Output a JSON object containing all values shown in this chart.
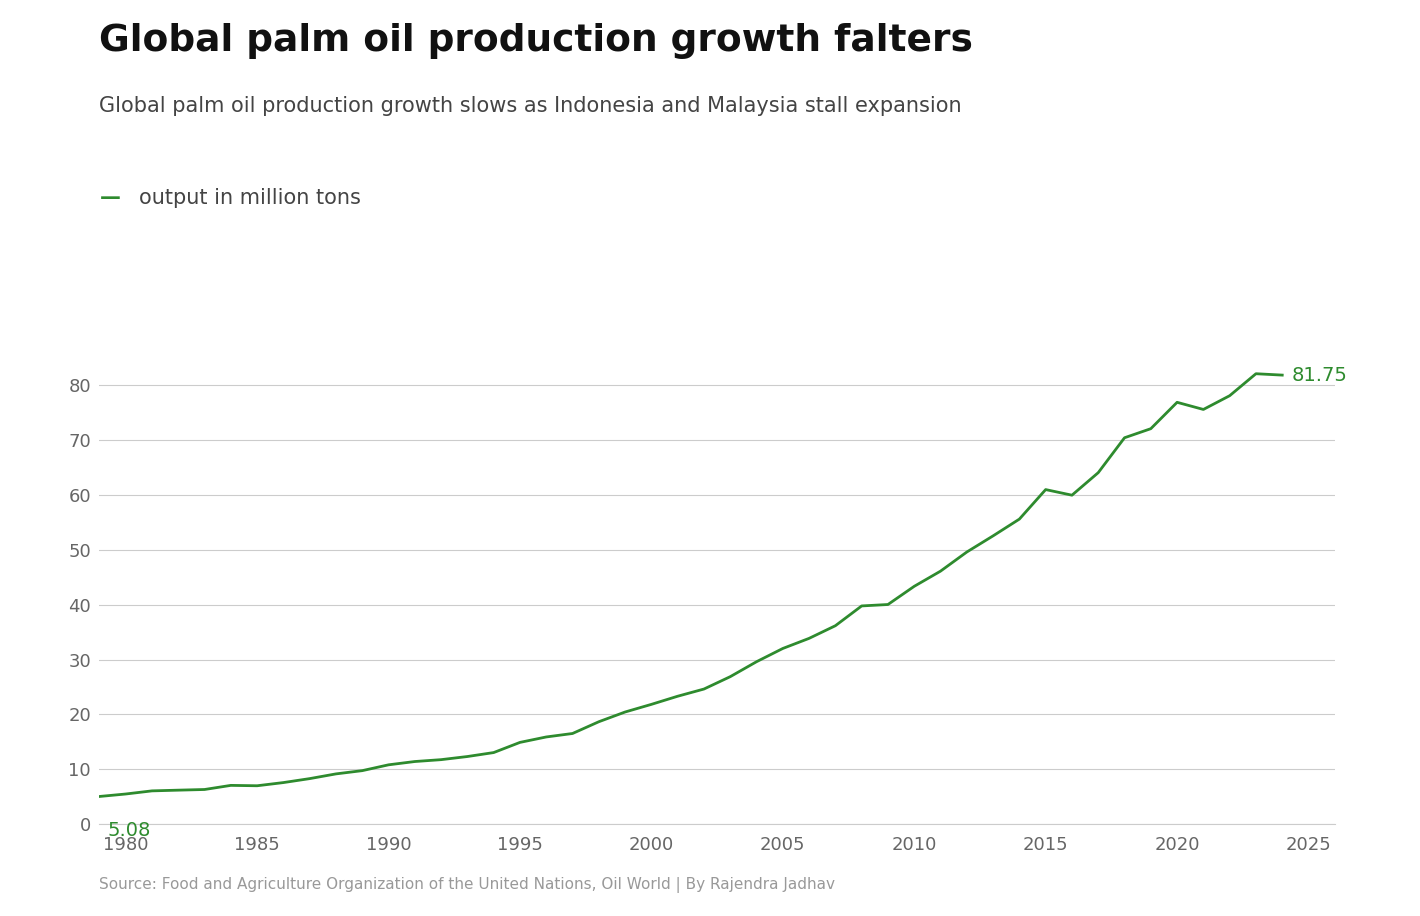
{
  "title": "Global palm oil production growth falters",
  "subtitle": "Global palm oil production growth slows as Indonesia and Malaysia stall expansion",
  "legend_line_label": "output in million tons",
  "source": "Source: Food and Agriculture Organization of the United Nations, Oil World | By Rajendra Jadhav",
  "line_color": "#2e8b2e",
  "background_color": "#ffffff",
  "title_color": "#111111",
  "subtitle_color": "#444444",
  "source_color": "#999999",
  "annotation_color": "#2e8b2e",
  "years": [
    1979,
    1980,
    1981,
    1982,
    1983,
    1984,
    1985,
    1986,
    1987,
    1988,
    1989,
    1990,
    1991,
    1992,
    1993,
    1994,
    1995,
    1996,
    1997,
    1998,
    1999,
    2000,
    2001,
    2002,
    2003,
    2004,
    2005,
    2006,
    2007,
    2008,
    2009,
    2010,
    2011,
    2012,
    2013,
    2014,
    2015,
    2016,
    2017,
    2018,
    2019,
    2020,
    2021,
    2022,
    2023,
    2024
  ],
  "values": [
    5.08,
    5.53,
    6.1,
    6.23,
    6.35,
    7.1,
    7.03,
    7.61,
    8.33,
    9.19,
    9.78,
    10.84,
    11.44,
    11.78,
    12.35,
    13.07,
    14.92,
    15.91,
    16.54,
    18.68,
    20.45,
    21.84,
    23.32,
    24.63,
    26.88,
    29.6,
    32.01,
    33.85,
    36.15,
    39.75,
    40.01,
    43.32,
    46.08,
    49.56,
    52.5,
    55.55,
    60.92,
    59.9,
    64.0,
    70.35,
    72.0,
    76.8,
    75.5,
    78.0,
    82.0,
    81.75
  ],
  "xlim": [
    1979,
    2026
  ],
  "ylim": [
    0,
    90
  ],
  "yticks": [
    0,
    10,
    20,
    30,
    40,
    50,
    60,
    70,
    80
  ],
  "xticks": [
    1980,
    1985,
    1990,
    1995,
    2000,
    2005,
    2010,
    2015,
    2020,
    2025
  ],
  "first_label": "5.08",
  "last_label": "81.75",
  "first_year": 1979,
  "last_year": 2024,
  "first_value": 5.08,
  "last_value": 81.75
}
